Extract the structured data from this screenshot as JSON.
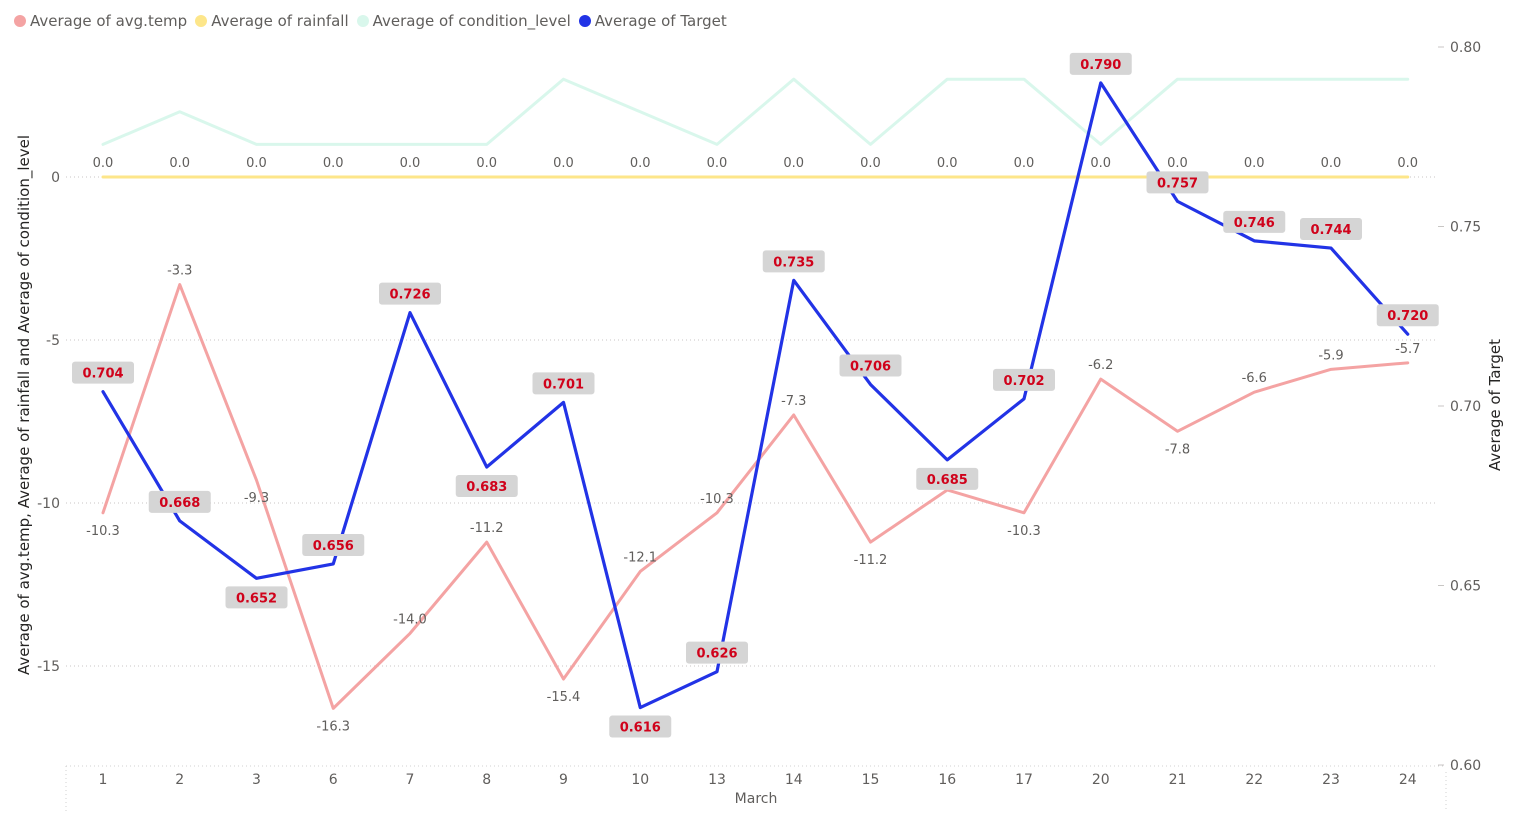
{
  "chart_data": {
    "type": "line",
    "categories": [
      "1",
      "2",
      "3",
      "6",
      "7",
      "8",
      "9",
      "10",
      "13",
      "14",
      "15",
      "16",
      "17",
      "20",
      "21",
      "22",
      "23",
      "24"
    ],
    "xlabel": "March",
    "ylabel_left": "Average of avg.temp, Average of rainfall and Average of condition_level",
    "ylabel_right": "Average of Target",
    "y_left": {
      "ticks": [
        "0",
        "-5",
        "-10",
        "-15"
      ],
      "tick_values": [
        0,
        -5,
        -10,
        -15
      ],
      "range": [
        -17.8,
        4.0
      ]
    },
    "y_right": {
      "ticks": [
        "0.80",
        "0.75",
        "0.70",
        "0.65",
        "0.60"
      ],
      "tick_values": [
        0.8,
        0.75,
        0.7,
        0.65,
        0.6
      ],
      "range": [
        0.6,
        0.8
      ]
    },
    "grid": true,
    "legend_position": "top-left",
    "series": [
      {
        "name": "Average of avg.temp",
        "axis": "left",
        "color": "#f4a3a3",
        "values": [
          -10.3,
          -3.3,
          -9.3,
          -16.3,
          -14.0,
          -11.2,
          -15.4,
          -12.1,
          -10.3,
          -7.3,
          -11.2,
          -9.6,
          -10.3,
          -6.2,
          -7.8,
          -6.6,
          -5.9,
          -5.7
        ],
        "labels": [
          "-10.3",
          "-3.3",
          "-9.3",
          "-16.3",
          "-14.0",
          "-11.2",
          "-15.4",
          "-12.1",
          "-10.3",
          "-7.3",
          "-11.2",
          "-9.6",
          "-10.3",
          "-6.2",
          "-7.8",
          "-6.6",
          "-5.9",
          "-5.7"
        ]
      },
      {
        "name": "Average of rainfall",
        "axis": "left",
        "color": "#fde68a",
        "values": [
          0,
          0,
          0,
          0,
          0,
          0,
          0,
          0,
          0,
          0,
          0,
          0,
          0,
          0,
          0,
          0,
          0,
          0
        ],
        "labels": [
          "0.0",
          "0.0",
          "0.0",
          "0.0",
          "0.0",
          "0.0",
          "0.0",
          "0.0",
          "0.0",
          "0.0",
          "0.0",
          "0.0",
          "0.0",
          "0.0",
          "0.0",
          "0.0",
          "0.0",
          "0.0"
        ]
      },
      {
        "name": "Average of condition_level",
        "axis": "left",
        "color": "#d9f7ec",
        "values": [
          1,
          2,
          1,
          1,
          1,
          1,
          3,
          2,
          1,
          3,
          1,
          3,
          3,
          1,
          3,
          3,
          3,
          3
        ]
      },
      {
        "name": "Average of Target",
        "axis": "right",
        "color": "#2233e6",
        "values": [
          0.704,
          0.668,
          0.652,
          0.656,
          0.726,
          0.683,
          0.701,
          0.616,
          0.626,
          0.735,
          0.706,
          0.685,
          0.702,
          0.79,
          0.757,
          0.746,
          0.744,
          0.72
        ],
        "labels": [
          "0.704",
          "0.668",
          "0.652",
          "0.656",
          "0.726",
          "0.683",
          "0.701",
          "0.616",
          "0.626",
          "0.735",
          "0.706",
          "0.685",
          "0.702",
          "0.790",
          "0.757",
          "0.746",
          "0.744",
          "0.720"
        ],
        "label_color": "#d0021b",
        "label_bg": "#d5d5d5"
      }
    ]
  }
}
